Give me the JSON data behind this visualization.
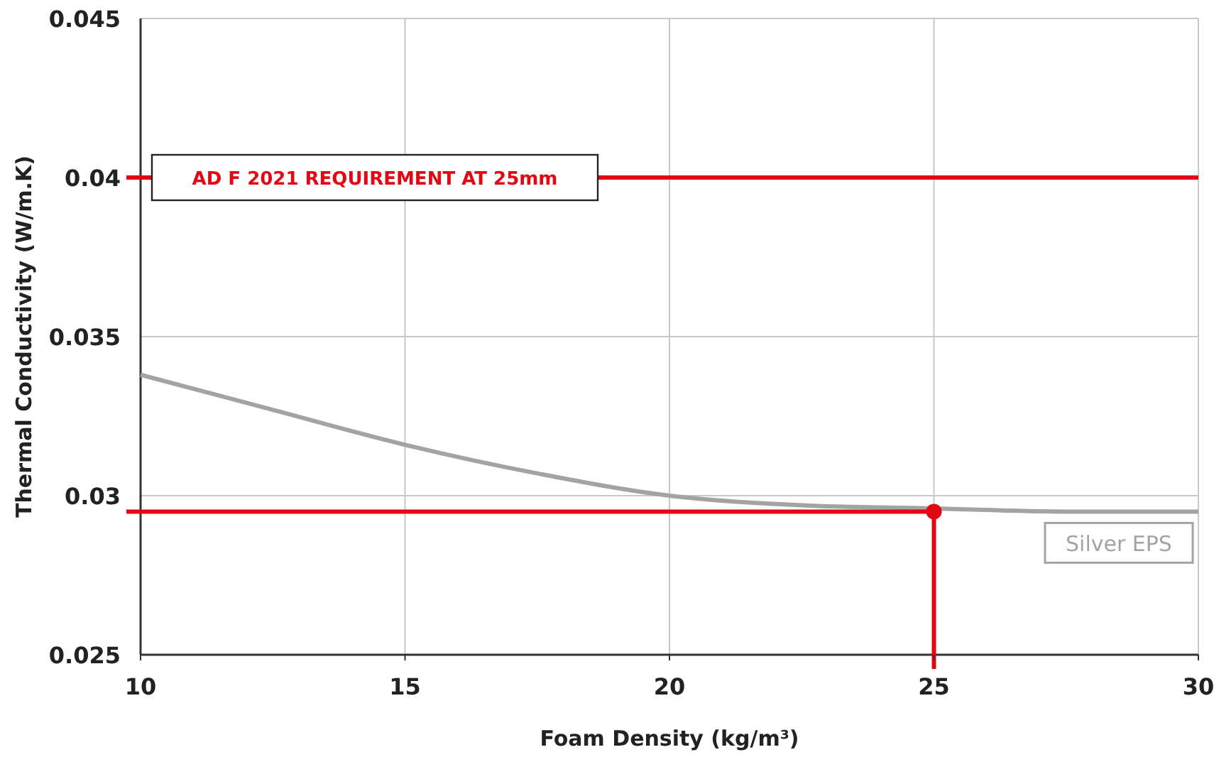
{
  "chart_data": {
    "type": "line",
    "xlabel": "Foam Density (kg/m³)",
    "ylabel": "Thermal Conductivity (W/m.K)",
    "xlim": [
      10,
      30
    ],
    "xticks": [
      10,
      15,
      20,
      25,
      30
    ],
    "ylim": [
      0.025,
      0.045
    ],
    "yticks": [
      0.025,
      0.03,
      0.035,
      0.04,
      0.045
    ],
    "grid": true,
    "series": [
      {
        "name": "Silver EPS",
        "color": "#a3a3a3",
        "x": [
          10,
          12.5,
          15,
          17.5,
          20,
          22.5,
          25,
          27.5,
          30
        ],
        "values": [
          0.0338,
          0.0327,
          0.0316,
          0.0307,
          0.03,
          0.0297,
          0.0296,
          0.0295,
          0.0295
        ]
      },
      {
        "type": "scatter",
        "color": "#e30613",
        "marker": "circle",
        "x": [
          25
        ],
        "values": [
          0.0295
        ]
      }
    ],
    "ref_lines": [
      {
        "axis": "y",
        "value": 0.04,
        "label": "AD F 2021 REQUIREMENT AT 25mm",
        "color": "#e30613"
      },
      {
        "axis": "y",
        "value": 0.0295,
        "color": "#e30613"
      },
      {
        "axis": "x",
        "value": 25,
        "color": "#e30613"
      }
    ]
  }
}
